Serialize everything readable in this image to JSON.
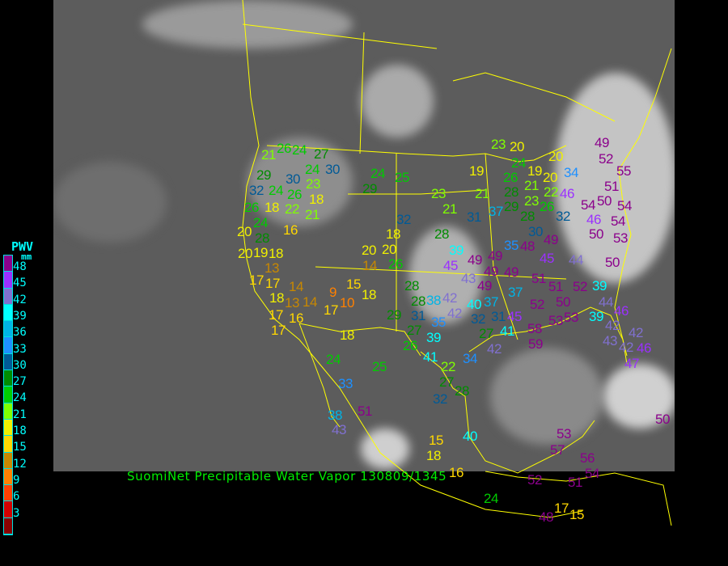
{
  "title": "SuomiNet Precipitable Water Vapor 130809/1345",
  "legend": {
    "title": "PWV",
    "unit": "mm",
    "ticks": [
      "48",
      "45",
      "42",
      "39",
      "36",
      "33",
      "30",
      "27",
      "24",
      "21",
      "18",
      "15",
      "12",
      "9",
      "6",
      "3"
    ],
    "colors": [
      "#8b008b",
      "#9b30ff",
      "#8070d0",
      "#00ffff",
      "#00b4e6",
      "#1e90ff",
      "#005a96",
      "#008c00",
      "#00cc00",
      "#80ff00",
      "#f0f000",
      "#ffd700",
      "#c88800",
      "#ff8000",
      "#ff4000",
      "#d40000",
      "#8b0000"
    ]
  },
  "colors": {
    "map_lines": "#ffff00",
    "title": "#00ee00",
    "legend_text": "#00ffff",
    "background": "#000000"
  },
  "stations": [
    "21",
    "26",
    "24",
    "27",
    "24",
    "23",
    "30",
    "29",
    "30",
    "24",
    "26",
    "32",
    "18",
    "22",
    "21",
    "26",
    "18",
    "24",
    "16",
    "20",
    "28",
    "19",
    "20",
    "18",
    "13",
    "17",
    "17",
    "14",
    "18",
    "13",
    "14",
    "17",
    "16",
    "17",
    "9",
    "15",
    "18",
    "17",
    "10",
    "24",
    "25",
    "29",
    "23",
    "21",
    "32",
    "18",
    "28",
    "20",
    "20",
    "14",
    "26",
    "39",
    "45",
    "28",
    "28",
    "38",
    "42",
    "42",
    "31",
    "29",
    "35",
    "40",
    "37",
    "32",
    "31",
    "27",
    "41",
    "45",
    "42",
    "27",
    "26",
    "39",
    "18",
    "24",
    "25",
    "41",
    "22",
    "27",
    "28",
    "32",
    "34",
    "33",
    "51",
    "38",
    "43",
    "43",
    "49",
    "49",
    "49",
    "37",
    "51",
    "51",
    "52",
    "39",
    "52",
    "50",
    "53",
    "53",
    "58",
    "59",
    "44",
    "46",
    "39",
    "42",
    "43",
    "42",
    "42",
    "46",
    "47",
    "50",
    "23",
    "20",
    "20",
    "19",
    "24",
    "26",
    "19",
    "28",
    "20",
    "21",
    "22",
    "34",
    "49",
    "52",
    "55",
    "51",
    "21",
    "29",
    "23",
    "26",
    "32",
    "46",
    "54",
    "50",
    "54",
    "31",
    "37",
    "28",
    "46",
    "50",
    "54",
    "30",
    "53",
    "35",
    "48",
    "49",
    "45",
    "44",
    "50",
    "49",
    "49",
    "15",
    "18",
    "40",
    "53",
    "57",
    "56",
    "54",
    "52",
    "51",
    "24",
    "17",
    "15",
    "48",
    "16"
  ]
}
